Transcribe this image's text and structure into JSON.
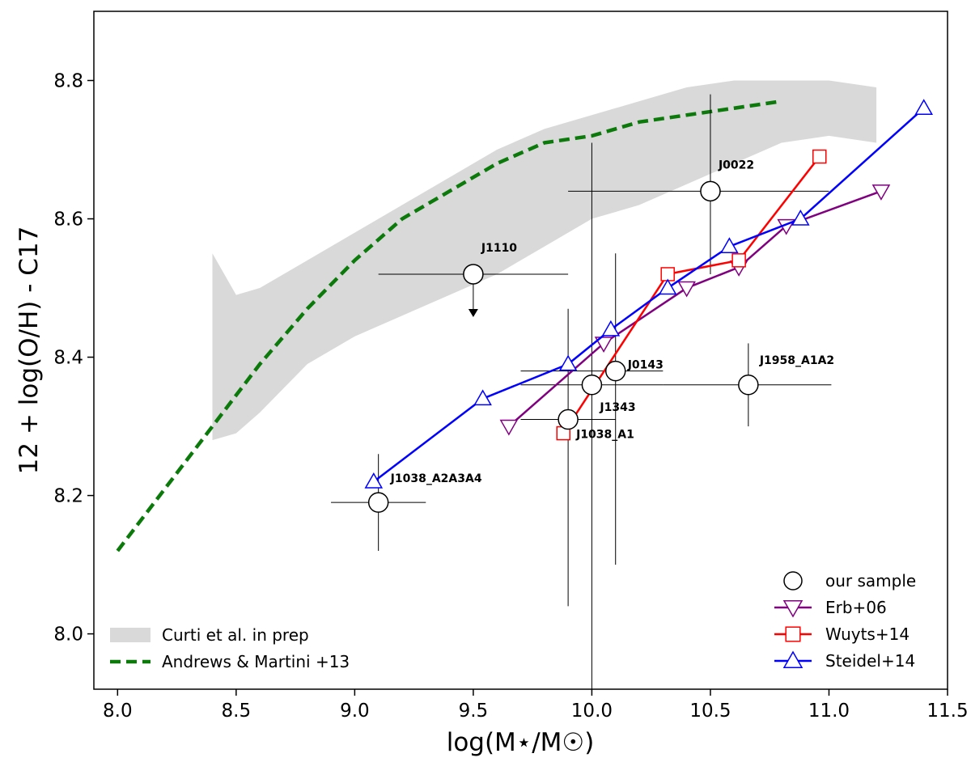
{
  "chart_data": {
    "type": "scatter",
    "xlabel": "log(M⋆/M☉)",
    "ylabel": "12 + log(O/H) - C17",
    "xlim": [
      7.9,
      11.5
    ],
    "ylim": [
      7.92,
      8.9
    ],
    "xticks": [
      "8.0",
      "8.5",
      "9.0",
      "9.5",
      "10.0",
      "10.5",
      "11.0",
      "11.5"
    ],
    "yticks": [
      "8.0",
      "8.2",
      "8.4",
      "8.6",
      "8.8"
    ],
    "grid": false,
    "colors": {
      "curti": "#d9d9d9",
      "andrews": "#0b7a0b",
      "sample": "#000000",
      "erb": "#800080",
      "wuyts": "#ff0000",
      "steidel": "#0000ff"
    },
    "curti_band": {
      "name": "Curti et al. in prep",
      "upper": [
        [
          8.4,
          8.55
        ],
        [
          8.5,
          8.49
        ],
        [
          8.6,
          8.5
        ],
        [
          8.8,
          8.54
        ],
        [
          9.0,
          8.58
        ],
        [
          9.2,
          8.62
        ],
        [
          9.4,
          8.66
        ],
        [
          9.6,
          8.7
        ],
        [
          9.8,
          8.73
        ],
        [
          10.0,
          8.75
        ],
        [
          10.2,
          8.77
        ],
        [
          10.4,
          8.79
        ],
        [
          10.6,
          8.8
        ],
        [
          10.8,
          8.8
        ],
        [
          11.0,
          8.8
        ],
        [
          11.2,
          8.79
        ]
      ],
      "lower": [
        [
          11.2,
          8.71
        ],
        [
          11.0,
          8.72
        ],
        [
          10.8,
          8.71
        ],
        [
          10.6,
          8.68
        ],
        [
          10.4,
          8.65
        ],
        [
          10.2,
          8.62
        ],
        [
          10.0,
          8.6
        ],
        [
          9.8,
          8.56
        ],
        [
          9.6,
          8.52
        ],
        [
          9.4,
          8.49
        ],
        [
          9.2,
          8.46
        ],
        [
          9.0,
          8.43
        ],
        [
          8.8,
          8.39
        ],
        [
          8.6,
          8.32
        ],
        [
          8.5,
          8.29
        ],
        [
          8.4,
          8.28
        ]
      ]
    },
    "andrews_curve": {
      "name": "Andrews & Martini +13",
      "x": [
        8.0,
        8.2,
        8.4,
        8.6,
        8.8,
        9.0,
        9.2,
        9.4,
        9.6,
        9.8,
        10.0,
        10.2,
        10.4,
        10.6,
        10.8
      ],
      "y": [
        8.12,
        8.21,
        8.3,
        8.39,
        8.47,
        8.54,
        8.6,
        8.64,
        8.68,
        8.71,
        8.72,
        8.74,
        8.75,
        8.76,
        8.77
      ]
    },
    "sample": {
      "name": "our sample",
      "points": [
        {
          "label": "J0022",
          "x": 10.5,
          "y": 8.64,
          "xerr": [
            0.6,
            0.5
          ],
          "yerr": [
            0.12,
            0.14
          ]
        },
        {
          "label": "J1110",
          "x": 9.5,
          "y": 8.52,
          "xerr": [
            0.4,
            0.4
          ],
          "yerr": [
            0.0,
            0.0
          ],
          "upper_limit": true
        },
        {
          "label": "J0143",
          "x": 10.1,
          "y": 8.38,
          "xerr": [
            0.4,
            0.2
          ],
          "yerr": [
            0.28,
            0.17
          ]
        },
        {
          "label": "J1343",
          "x": 10.0,
          "y": 8.36,
          "xerr": [
            0.3,
            0.3
          ],
          "yerr": [
            0.44,
            0.35
          ]
        },
        {
          "label": "J1958_A1A2",
          "x": 10.66,
          "y": 8.36,
          "xerr": [
            0.36,
            0.35
          ],
          "yerr": [
            0.06,
            0.06
          ]
        },
        {
          "label": "J1038_A1",
          "x": 9.9,
          "y": 8.31,
          "xerr": [
            0.2,
            0.2
          ],
          "yerr": [
            0.27,
            0.16
          ]
        },
        {
          "label": "J1038_A2A3A4",
          "x": 9.1,
          "y": 8.19,
          "xerr": [
            0.2,
            0.2
          ],
          "yerr": [
            0.07,
            0.07
          ]
        }
      ]
    },
    "series": [
      {
        "name": "Erb+06",
        "marker": "triangle-down",
        "color": "#800080",
        "x": [
          9.65,
          10.05,
          10.4,
          10.62,
          10.82,
          11.22
        ],
        "y": [
          8.3,
          8.42,
          8.5,
          8.53,
          8.59,
          8.64
        ]
      },
      {
        "name": "Wuyts+14",
        "marker": "square",
        "color": "#ff0000",
        "x": [
          9.88,
          10.32,
          10.62,
          10.96
        ],
        "y": [
          8.29,
          8.52,
          8.54,
          8.69
        ]
      },
      {
        "name": "Steidel+14",
        "marker": "triangle-up",
        "color": "#0000ff",
        "x": [
          9.08,
          9.54,
          9.9,
          10.08,
          10.32,
          10.58,
          10.88,
          11.4
        ],
        "y": [
          8.22,
          8.34,
          8.39,
          8.44,
          8.5,
          8.56,
          8.6,
          8.76
        ]
      }
    ],
    "legend_left": {
      "placement": "lower-left",
      "items": [
        "Curti et al. in prep",
        "Andrews & Martini +13"
      ]
    },
    "legend_right": {
      "placement": "lower-right",
      "items": [
        "our sample",
        "Erb+06",
        "Wuyts+14",
        "Steidel+14"
      ]
    }
  }
}
